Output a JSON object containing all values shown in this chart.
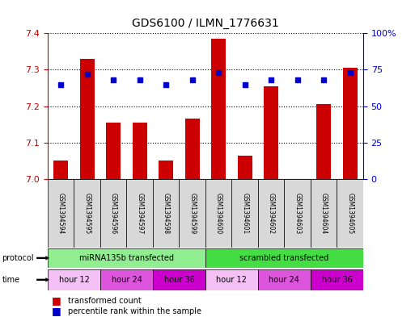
{
  "title": "GDS6100 / ILMN_1776631",
  "samples": [
    "GSM1394594",
    "GSM1394595",
    "GSM1394596",
    "GSM1394597",
    "GSM1394598",
    "GSM1394599",
    "GSM1394600",
    "GSM1394601",
    "GSM1394602",
    "GSM1394603",
    "GSM1394604",
    "GSM1394605"
  ],
  "red_values": [
    7.05,
    7.33,
    7.155,
    7.155,
    7.05,
    7.165,
    7.385,
    7.065,
    7.255,
    7.0,
    7.205,
    7.305
  ],
  "blue_values": [
    65,
    72,
    68,
    68,
    65,
    68,
    73,
    65,
    68,
    68,
    68,
    73
  ],
  "ylim_left": [
    7.0,
    7.4
  ],
  "ylim_right": [
    0,
    100
  ],
  "yticks_left": [
    7.0,
    7.1,
    7.2,
    7.3,
    7.4
  ],
  "yticks_right": [
    0,
    25,
    50,
    75,
    100
  ],
  "ytick_labels_right": [
    "0",
    "25",
    "50",
    "75",
    "100%"
  ],
  "protocol_labels": [
    "miRNA135b transfected",
    "scrambled transfected"
  ],
  "protocol_color_1": "#90EE90",
  "protocol_color_2": "#44DD44",
  "time_groups": [
    {
      "label": "hour 12",
      "color": "#f5c0f5",
      "span": [
        0,
        2
      ]
    },
    {
      "label": "hour 24",
      "color": "#dd55dd",
      "span": [
        2,
        4
      ]
    },
    {
      "label": "hour 36",
      "color": "#cc00cc",
      "span": [
        4,
        6
      ]
    },
    {
      "label": "hour 12",
      "color": "#f5c0f5",
      "span": [
        6,
        8
      ]
    },
    {
      "label": "hour 24",
      "color": "#dd55dd",
      "span": [
        8,
        10
      ]
    },
    {
      "label": "hour 36",
      "color": "#cc00cc",
      "span": [
        10,
        12
      ]
    }
  ],
  "bar_color": "#CC0000",
  "dot_color": "#0000CC",
  "bar_width": 0.55,
  "background_color": "#ffffff",
  "sample_box_color": "#d8d8d8"
}
